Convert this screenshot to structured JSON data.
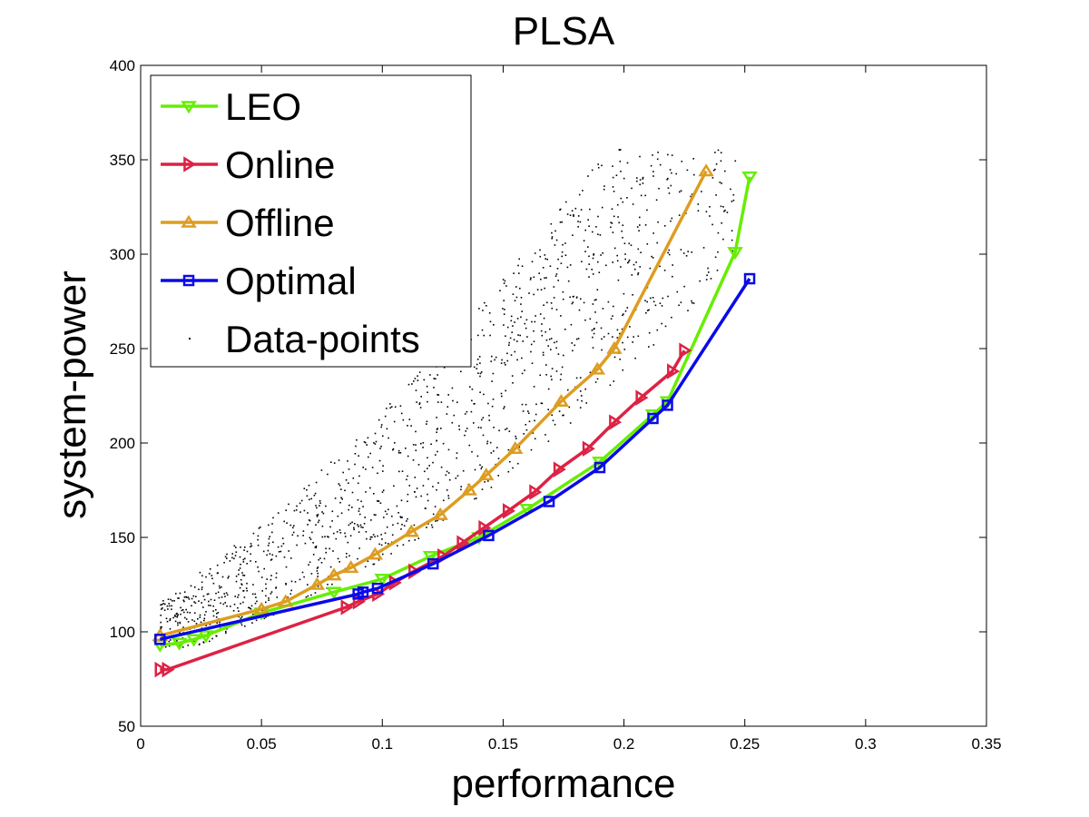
{
  "chart_data": {
    "type": "line",
    "title": "PLSA",
    "xlabel": "performance",
    "ylabel": "system-power",
    "xlim": [
      0,
      0.35
    ],
    "ylim": [
      50,
      400
    ],
    "xticks": [
      "0",
      "0.05",
      "0.1",
      "0.15",
      "0.2",
      "0.25",
      "0.3",
      "0.35"
    ],
    "yticks": [
      "50",
      "100",
      "150",
      "200",
      "250",
      "300",
      "350",
      "400"
    ],
    "grid": false,
    "legend_position": "top-left",
    "series": [
      {
        "name": "LEO",
        "color": "#66ee00",
        "marker": "triangle-down",
        "x": [
          0.008,
          0.016,
          0.022,
          0.027,
          0.05,
          0.08,
          0.1,
          0.12,
          0.14,
          0.16,
          0.19,
          0.212,
          0.218,
          0.246,
          0.252
        ],
        "y": [
          93,
          94,
          96,
          98,
          110,
          121,
          128,
          140,
          150,
          165,
          190,
          215,
          222,
          301,
          341
        ]
      },
      {
        "name": "Online",
        "color": "#dd2244",
        "marker": "triangle-right",
        "x": [
          0.008,
          0.011,
          0.085,
          0.09,
          0.098,
          0.105,
          0.113,
          0.125,
          0.133,
          0.142,
          0.152,
          0.163,
          0.173,
          0.185,
          0.196,
          0.207,
          0.22,
          0.225
        ],
        "y": [
          80,
          80,
          113,
          116,
          120,
          126,
          132,
          140,
          147,
          155,
          164,
          174,
          186,
          197,
          211,
          224,
          238,
          249
        ]
      },
      {
        "name": "Offline",
        "color": "#dd9d22",
        "marker": "triangle-up",
        "x": [
          0.008,
          0.05,
          0.06,
          0.073,
          0.08,
          0.087,
          0.097,
          0.112,
          0.124,
          0.136,
          0.143,
          0.155,
          0.174,
          0.189,
          0.196,
          0.234
        ],
        "y": [
          98,
          112,
          116,
          125,
          130,
          134,
          141,
          153,
          162,
          175,
          183,
          197,
          222,
          239,
          250,
          344
        ]
      },
      {
        "name": "Optimal",
        "color": "#0a0ae8",
        "marker": "square",
        "x": [
          0.008,
          0.09,
          0.092,
          0.098,
          0.121,
          0.144,
          0.169,
          0.19,
          0.212,
          0.218,
          0.252
        ],
        "y": [
          96,
          120,
          121,
          123,
          136,
          151,
          169,
          187,
          213,
          220,
          287
        ]
      },
      {
        "name": "Data-points",
        "color": "#000000",
        "marker": "dot",
        "x": [],
        "y": []
      }
    ]
  }
}
